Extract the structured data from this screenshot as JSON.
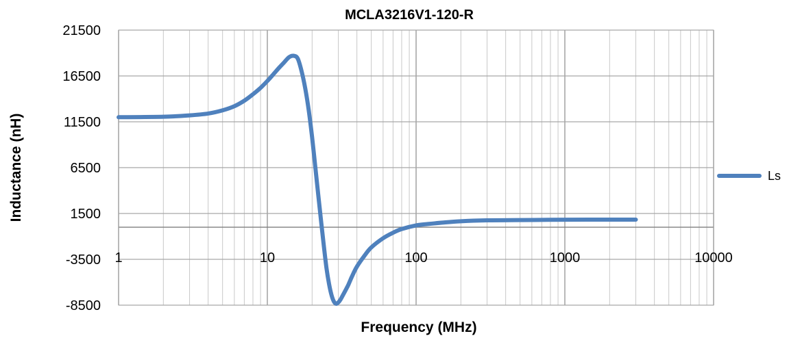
{
  "chart_data": {
    "type": "line",
    "title": "MCLA3216V1-120-R",
    "xlabel": "Frequency (MHz)",
    "ylabel": "Inductance (nH)",
    "x_scale": "log",
    "xlim": [
      1,
      10000
    ],
    "ylim": [
      -8500,
      21500
    ],
    "x_ticks": [
      "1",
      "10",
      "100",
      "1000",
      "10000"
    ],
    "y_ticks": [
      "21500",
      "16500",
      "11500",
      "6500",
      "1500",
      "-3500",
      "-8500"
    ],
    "grid": true,
    "legend_position": "right",
    "colors": {
      "series": "#4F81BD",
      "grid": "#a6a6a6"
    },
    "series": [
      {
        "name": "Ls",
        "x": [
          1,
          2,
          3,
          4,
          5,
          6,
          7,
          8,
          9,
          10,
          11,
          12,
          13,
          14,
          15,
          16,
          17,
          18,
          19,
          20,
          21,
          22,
          23,
          24,
          25,
          26,
          27,
          28,
          29,
          30,
          31,
          32,
          33,
          34,
          35,
          37,
          40,
          45,
          50,
          60,
          70,
          80,
          100,
          120,
          150,
          200,
          300,
          500,
          700,
          1000,
          2000,
          3000
        ],
        "values": [
          12000,
          12050,
          12200,
          12400,
          12750,
          13200,
          13800,
          14500,
          15200,
          15950,
          16700,
          17400,
          18000,
          18550,
          18700,
          18400,
          17000,
          15100,
          12700,
          9800,
          6600,
          3500,
          600,
          -2100,
          -4500,
          -6200,
          -7400,
          -8100,
          -8350,
          -8200,
          -7900,
          -7500,
          -7100,
          -6700,
          -6300,
          -5400,
          -4300,
          -3100,
          -2200,
          -1200,
          -600,
          -200,
          200,
          350,
          500,
          650,
          750,
          780,
          800,
          820,
          830,
          830
        ]
      }
    ]
  }
}
